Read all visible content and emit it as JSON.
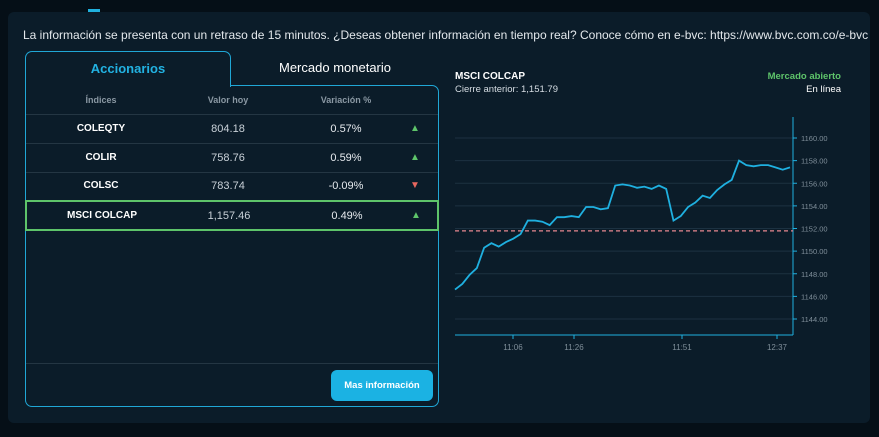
{
  "notice": "La información se presenta con un retraso de 15 minutos. ¿Deseas obtener información en tiempo real? Conoce cómo en e-bvc: https://www.bvc.com.co/e-bvc",
  "tabs": [
    {
      "label": "Accionarios",
      "active": true
    },
    {
      "label": "Mercado monetario",
      "active": false
    }
  ],
  "table": {
    "headers": [
      "Índices",
      "Valor hoy",
      "Variación %"
    ],
    "rows": [
      {
        "name": "COLEQTY",
        "value": "804.18",
        "change": "0.57%",
        "trend": "up"
      },
      {
        "name": "COLIR",
        "value": "758.76",
        "change": "0.59%",
        "trend": "up"
      },
      {
        "name": "COLSC",
        "value": "783.74",
        "change": "-0.09%",
        "trend": "down"
      },
      {
        "name": "MSCI COLCAP",
        "value": "1,157.46",
        "change": "0.49%",
        "trend": "up",
        "selected": true
      }
    ],
    "arrow_up": "▲",
    "arrow_down": "▼"
  },
  "more_button": "Mas información",
  "chart_panel": {
    "title": "MSCI COLCAP",
    "previous_close": "Cierre anterior: 1,151.79",
    "market_status": "Mercado abierto",
    "connection": "En línea"
  },
  "colors": {
    "accent": "#1bb2e3",
    "up": "#5ec46a",
    "down": "#e8675f",
    "line": "#1fb0e0",
    "reference": "#e8878f"
  },
  "chart_data": {
    "type": "line",
    "title": "MSCI COLCAP",
    "reference_line": 1151.79,
    "ylim": [
      1142.5,
      1161.8
    ],
    "y_ticks": [
      "1144.00",
      "1146.00",
      "1148.00",
      "1150.00",
      "1152.00",
      "1154.00",
      "1156.00",
      "1158.00",
      "1160.00"
    ],
    "x_ticks": [
      "11:06",
      "11:26",
      "11:51",
      "12:37"
    ],
    "grid": true,
    "values": [
      1146.6,
      1147.1,
      1147.9,
      1148.5,
      1150.3,
      1150.7,
      1150.4,
      1150.8,
      1151.1,
      1151.5,
      1152.7,
      1152.7,
      1152.6,
      1152.3,
      1153.0,
      1153.0,
      1153.1,
      1153.0,
      1153.9,
      1153.9,
      1153.7,
      1153.8,
      1155.8,
      1155.9,
      1155.8,
      1155.6,
      1155.7,
      1155.5,
      1155.8,
      1155.5,
      1152.7,
      1153.1,
      1153.9,
      1154.3,
      1154.9,
      1154.7,
      1155.4,
      1155.9,
      1156.3,
      1158.0,
      1157.6,
      1157.5,
      1157.6,
      1157.6,
      1157.4,
      1157.2,
      1157.4
    ]
  }
}
